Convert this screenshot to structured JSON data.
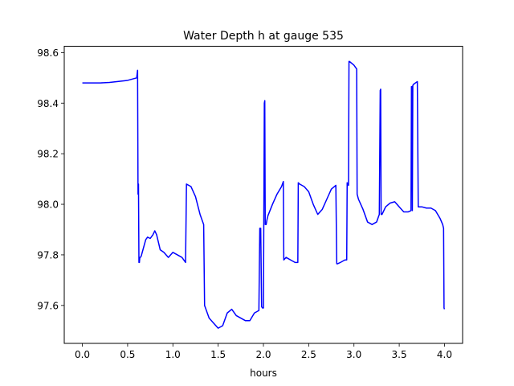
{
  "chart_data": {
    "type": "line",
    "title": "Water Depth h at gauge 535",
    "xlabel": "hours",
    "ylabel": "",
    "xlim": [
      -0.2,
      4.2
    ],
    "ylim": [
      97.45,
      98.625
    ],
    "xticks": [
      0.0,
      0.5,
      1.0,
      1.5,
      2.0,
      2.5,
      3.0,
      3.5,
      4.0
    ],
    "xtick_labels": [
      "0.0",
      "0.5",
      "1.0",
      "1.5",
      "2.0",
      "2.5",
      "3.0",
      "3.5",
      "4.0"
    ],
    "yticks": [
      97.6,
      97.8,
      98.0,
      98.2,
      98.4,
      98.6
    ],
    "ytick_labels": [
      "97.6",
      "97.8",
      "98.0",
      "98.2",
      "98.4",
      "98.6"
    ],
    "grid": false,
    "legend": "none",
    "series": [
      {
        "color": "#0000ff",
        "x": [
          0.0,
          0.1,
          0.2,
          0.3,
          0.4,
          0.5,
          0.6,
          0.61,
          0.615,
          0.62,
          0.625,
          0.63,
          0.635,
          0.64,
          0.65,
          0.7,
          0.72,
          0.75,
          0.78,
          0.8,
          0.82,
          0.84,
          0.86,
          0.9,
          0.95,
          1.0,
          1.05,
          1.1,
          1.14,
          1.15,
          1.2,
          1.25,
          1.3,
          1.34,
          1.35,
          1.4,
          1.45,
          1.5,
          1.55,
          1.6,
          1.65,
          1.7,
          1.75,
          1.8,
          1.85,
          1.9,
          1.95,
          1.96,
          1.97,
          1.98,
          1.99,
          2.0,
          2.01,
          2.015,
          2.02,
          2.03,
          2.04,
          2.05,
          2.1,
          2.15,
          2.2,
          2.22,
          2.225,
          2.25,
          2.3,
          2.35,
          2.38,
          2.385,
          2.4,
          2.45,
          2.5,
          2.55,
          2.6,
          2.65,
          2.7,
          2.75,
          2.8,
          2.81,
          2.82,
          2.85,
          2.9,
          2.92,
          2.925,
          2.94,
          2.945,
          2.95,
          3.0,
          3.03,
          3.035,
          3.05,
          3.1,
          3.15,
          3.2,
          3.25,
          3.28,
          3.29,
          3.295,
          3.3,
          3.31,
          3.35,
          3.4,
          3.45,
          3.5,
          3.55,
          3.6,
          3.63,
          3.635,
          3.64,
          3.645,
          3.65,
          3.66,
          3.7,
          3.71,
          3.72,
          3.75,
          3.8,
          3.85,
          3.9,
          3.95,
          3.98,
          3.99,
          3.995,
          4.0
        ],
        "y": [
          98.48,
          98.48,
          98.48,
          98.482,
          98.486,
          98.49,
          98.5,
          98.53,
          98.04,
          98.08,
          97.77,
          97.77,
          97.79,
          97.79,
          97.795,
          97.86,
          97.87,
          97.865,
          97.88,
          97.895,
          97.88,
          97.85,
          97.82,
          97.81,
          97.79,
          97.81,
          97.8,
          97.79,
          97.77,
          98.08,
          98.07,
          98.03,
          97.96,
          97.92,
          97.6,
          97.55,
          97.53,
          97.51,
          97.52,
          97.57,
          97.585,
          97.56,
          97.55,
          97.54,
          97.54,
          97.57,
          97.58,
          97.905,
          97.905,
          97.595,
          97.59,
          97.59,
          98.4,
          98.41,
          97.92,
          97.92,
          97.94,
          97.955,
          98.0,
          98.04,
          98.07,
          98.09,
          97.78,
          97.79,
          97.78,
          97.77,
          97.77,
          98.085,
          98.08,
          98.07,
          98.05,
          98.0,
          97.96,
          97.98,
          98.02,
          98.06,
          98.075,
          97.765,
          97.765,
          97.77,
          97.78,
          97.78,
          98.085,
          98.075,
          98.565,
          98.565,
          98.55,
          98.535,
          98.04,
          98.02,
          97.98,
          97.93,
          97.92,
          97.93,
          97.96,
          98.45,
          98.455,
          97.96,
          97.96,
          97.99,
          98.005,
          98.01,
          97.99,
          97.97,
          97.97,
          97.975,
          98.465,
          98.465,
          97.975,
          98.47,
          98.475,
          98.485,
          97.99,
          97.99,
          97.99,
          97.985,
          97.985,
          97.975,
          97.945,
          97.92,
          97.905,
          97.59,
          97.585
        ]
      }
    ]
  }
}
